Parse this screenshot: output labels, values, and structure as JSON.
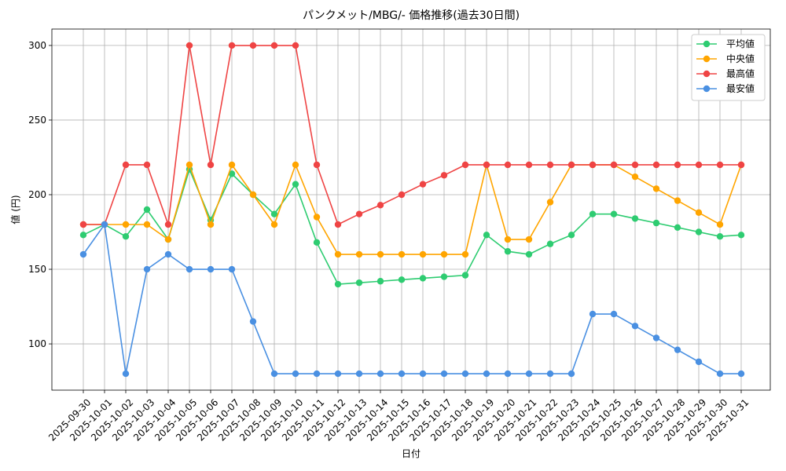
{
  "chart_data": {
    "type": "line",
    "title": "パンクメット/MBG/- 価格推移(過去30日間)",
    "x_label": "日付",
    "y_label": "値 (円)",
    "categories": [
      "2025-09-30",
      "2025-10-01",
      "2025-10-02",
      "2025-10-03",
      "2025-10-04",
      "2025-10-05",
      "2025-10-06",
      "2025-10-07",
      "2025-10-08",
      "2025-10-09",
      "2025-10-10",
      "2025-10-11",
      "2025-10-12",
      "2025-10-13",
      "2025-10-14",
      "2025-10-15",
      "2025-10-16",
      "2025-10-17",
      "2025-10-18",
      "2025-10-19",
      "2025-10-20",
      "2025-10-21",
      "2025-10-22",
      "2025-10-23",
      "2025-10-24",
      "2025-10-25",
      "2025-10-26",
      "2025-10-27",
      "2025-10-28",
      "2025-10-29",
      "2025-10-30",
      "2025-10-31"
    ],
    "series": [
      {
        "name": "平均値",
        "color": "#2ecc71",
        "values": [
          173,
          180,
          172,
          190,
          170,
          217,
          183,
          214,
          200,
          187,
          207,
          168,
          140,
          141,
          142,
          143,
          144,
          145,
          146,
          173,
          162,
          160,
          167,
          173,
          187,
          187,
          184,
          181,
          178,
          175,
          172,
          173
        ]
      },
      {
        "name": "中央値",
        "color": "#ffa500",
        "values": [
          180,
          180,
          180,
          180,
          170,
          220,
          180,
          220,
          200,
          180,
          220,
          185,
          160,
          160,
          160,
          160,
          160,
          160,
          160,
          220,
          170,
          170,
          195,
          220,
          220,
          220,
          212,
          204,
          196,
          188,
          180,
          220
        ]
      },
      {
        "name": "最高値",
        "color": "#ef4444",
        "values": [
          180,
          180,
          220,
          220,
          180,
          300,
          220,
          300,
          300,
          300,
          300,
          220,
          180,
          187,
          193,
          200,
          207,
          213,
          220,
          220,
          220,
          220,
          220,
          220,
          220,
          220,
          220,
          220,
          220,
          220,
          220,
          220
        ]
      },
      {
        "name": "最安値",
        "color": "#4a90e2",
        "values": [
          160,
          180,
          80,
          150,
          160,
          150,
          150,
          150,
          115,
          80,
          80,
          80,
          80,
          80,
          80,
          80,
          80,
          80,
          80,
          80,
          80,
          80,
          80,
          80,
          120,
          120,
          112,
          104,
          96,
          88,
          80,
          80
        ]
      }
    ],
    "ylim": [
      69,
      311
    ],
    "yticks": [
      100,
      150,
      200,
      250,
      300
    ],
    "grid": true,
    "legend": "upper right"
  }
}
